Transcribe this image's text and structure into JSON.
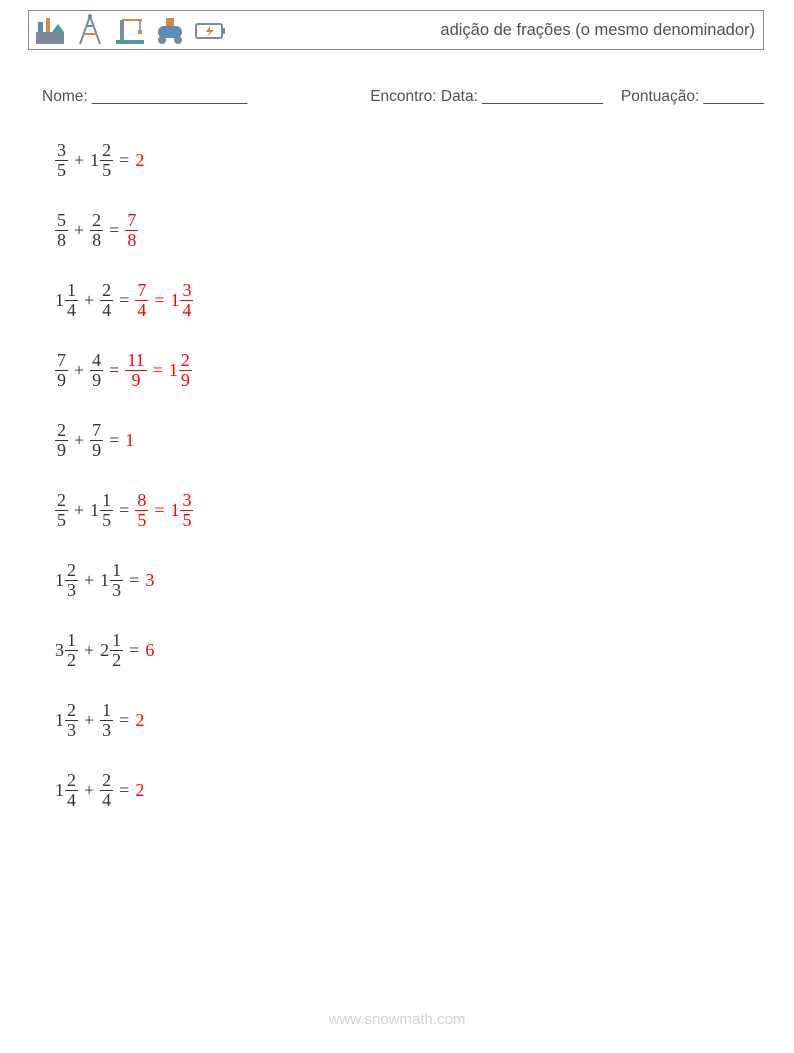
{
  "header": {
    "title": "adição de frações (o mesmo denominador)",
    "icons": [
      "factory-icon",
      "tower-icon",
      "crane-icon",
      "tank-icon",
      "battery-icon"
    ]
  },
  "fields": {
    "name_label": "Nome: __________________",
    "date_label": "Encontro: Data: ______________",
    "score_label": "Pontuação: _______"
  },
  "problems": [
    {
      "t1": {
        "w": "",
        "n": "3",
        "d": "5"
      },
      "t2": {
        "w": "1",
        "n": "2",
        "d": "5"
      },
      "ans": [
        {
          "type": "int",
          "v": "2"
        }
      ]
    },
    {
      "t1": {
        "w": "",
        "n": "5",
        "d": "8"
      },
      "t2": {
        "w": "",
        "n": "2",
        "d": "8"
      },
      "ans": [
        {
          "type": "frac",
          "w": "",
          "n": "7",
          "d": "8"
        }
      ]
    },
    {
      "t1": {
        "w": "1",
        "n": "1",
        "d": "4"
      },
      "t2": {
        "w": "",
        "n": "2",
        "d": "4"
      },
      "ans": [
        {
          "type": "frac",
          "w": "",
          "n": "7",
          "d": "4"
        },
        {
          "type": "frac",
          "w": "1",
          "n": "3",
          "d": "4"
        }
      ]
    },
    {
      "t1": {
        "w": "",
        "n": "7",
        "d": "9"
      },
      "t2": {
        "w": "",
        "n": "4",
        "d": "9"
      },
      "ans": [
        {
          "type": "frac",
          "w": "",
          "n": "11",
          "d": "9"
        },
        {
          "type": "frac",
          "w": "1",
          "n": "2",
          "d": "9"
        }
      ]
    },
    {
      "t1": {
        "w": "",
        "n": "2",
        "d": "9"
      },
      "t2": {
        "w": "",
        "n": "7",
        "d": "9"
      },
      "ans": [
        {
          "type": "int",
          "v": "1"
        }
      ]
    },
    {
      "t1": {
        "w": "",
        "n": "2",
        "d": "5"
      },
      "t2": {
        "w": "1",
        "n": "1",
        "d": "5"
      },
      "ans": [
        {
          "type": "frac",
          "w": "",
          "n": "8",
          "d": "5"
        },
        {
          "type": "frac",
          "w": "1",
          "n": "3",
          "d": "5"
        }
      ]
    },
    {
      "t1": {
        "w": "1",
        "n": "2",
        "d": "3"
      },
      "t2": {
        "w": "1",
        "n": "1",
        "d": "3"
      },
      "ans": [
        {
          "type": "int",
          "v": "3"
        }
      ]
    },
    {
      "t1": {
        "w": "3",
        "n": "1",
        "d": "2"
      },
      "t2": {
        "w": "2",
        "n": "1",
        "d": "2"
      },
      "ans": [
        {
          "type": "int",
          "v": "6"
        }
      ]
    },
    {
      "t1": {
        "w": "1",
        "n": "2",
        "d": "3"
      },
      "t2": {
        "w": "",
        "n": "1",
        "d": "3"
      },
      "ans": [
        {
          "type": "int",
          "v": "2"
        }
      ]
    },
    {
      "t1": {
        "w": "1",
        "n": "2",
        "d": "4"
      },
      "t2": {
        "w": "",
        "n": "2",
        "d": "4"
      },
      "ans": [
        {
          "type": "int",
          "v": "2"
        }
      ]
    }
  ],
  "labels": {
    "plus": "+",
    "equals": "="
  },
  "watermark": "www.snowmath.com",
  "style": {
    "answer_color": "#ff0000",
    "text_color": "#333333",
    "header_text_color": "#515151",
    "border_color": "#888888",
    "watermark_color": "#d3d3d3",
    "font_size_body": 18,
    "font_size_header": 16.5,
    "icon_colors": {
      "blue": "#5b8db8",
      "orange": "#d68a3a",
      "teal": "#4a9aa5",
      "gray": "#7a8a99"
    }
  }
}
